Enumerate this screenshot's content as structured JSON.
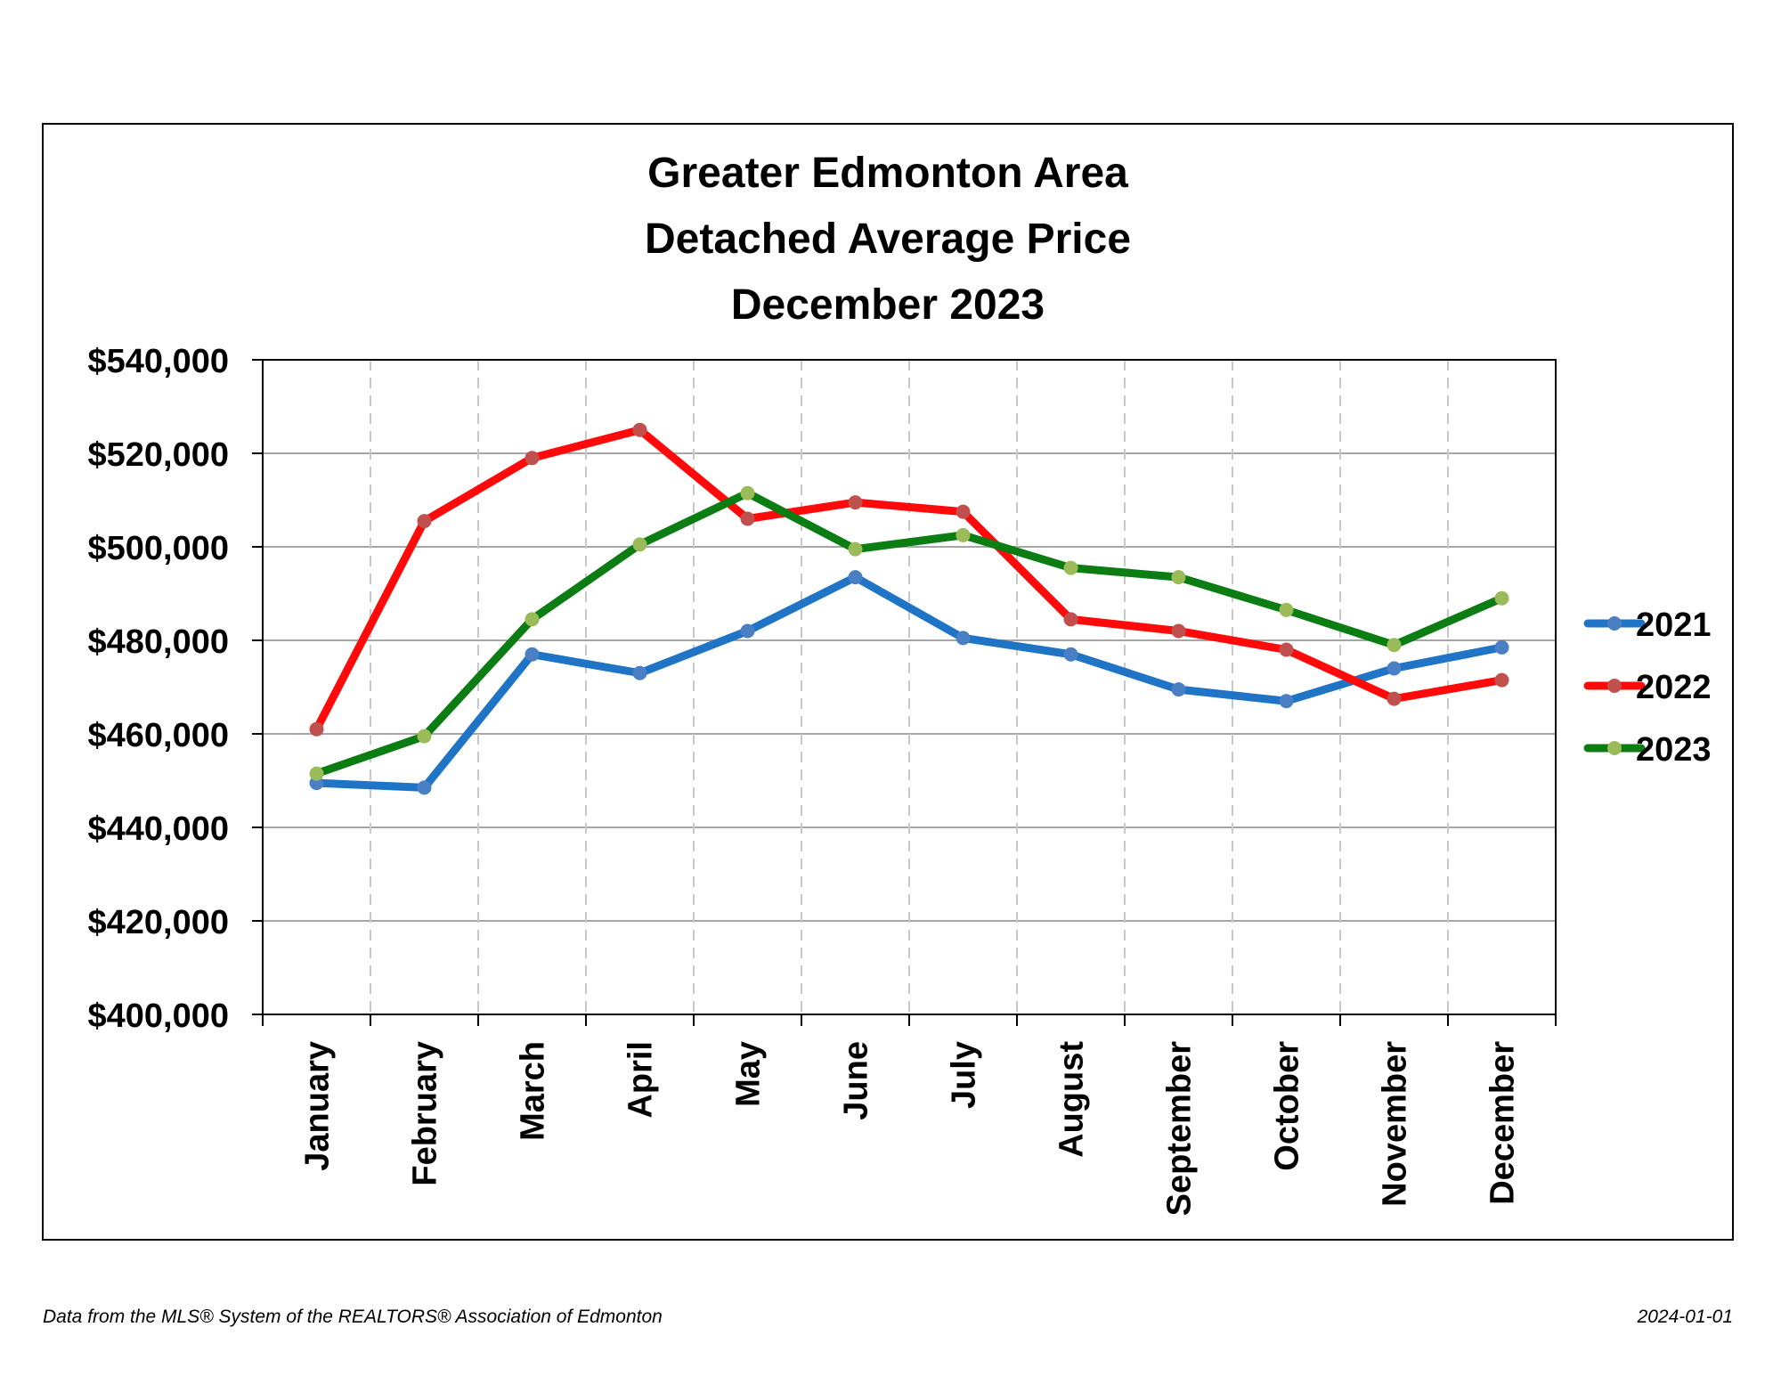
{
  "chart_data": {
    "type": "line",
    "title": [
      "Greater Edmonton Area",
      "Detached Average Price",
      "December 2023"
    ],
    "xlabel": "",
    "ylabel": "",
    "categories": [
      "January",
      "February",
      "March",
      "April",
      "May",
      "June",
      "July",
      "August",
      "September",
      "October",
      "November",
      "December"
    ],
    "ylim": [
      400000,
      540000
    ],
    "yticks": [
      400000,
      420000,
      440000,
      460000,
      480000,
      500000,
      520000,
      540000
    ],
    "ytick_labels": [
      "$400,000",
      "$420,000",
      "$440,000",
      "$460,000",
      "$480,000",
      "$500,000",
      "$520,000",
      "$540,000"
    ],
    "grid": {
      "horizontal": "solid",
      "vertical": "dashed"
    },
    "legend": "right",
    "series": [
      {
        "name": "2021",
        "color": "#1F74C6",
        "marker_color": "#4A7FC4",
        "values": [
          449500,
          448500,
          477000,
          473000,
          482000,
          493500,
          480500,
          477000,
          469500,
          467000,
          474000,
          478500
        ]
      },
      {
        "name": "2022",
        "color": "#FF0A0A",
        "marker_color": "#C0504D",
        "values": [
          461000,
          505500,
          519000,
          525000,
          506000,
          509500,
          507500,
          484500,
          482000,
          478000,
          467500,
          471500
        ]
      },
      {
        "name": "2023",
        "color": "#0B7D12",
        "marker_color": "#9BBB59",
        "values": [
          451500,
          459500,
          484500,
          500500,
          511500,
          499500,
          502500,
          495500,
          493500,
          486500,
          479000,
          489000
        ]
      }
    ]
  },
  "footer": {
    "source": "Data from the MLS® System of the REALTORS® Association of Edmonton",
    "date": "2024-01-01"
  }
}
